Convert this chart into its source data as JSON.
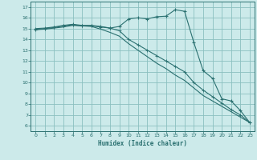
{
  "bg_color": "#cceaea",
  "grid_color": "#8bbfbf",
  "line_color": "#2a7070",
  "xlabel": "Humidex (Indice chaleur)",
  "xlim": [
    -0.5,
    23.5
  ],
  "ylim": [
    5.5,
    17.5
  ],
  "yticks": [
    6,
    7,
    8,
    9,
    10,
    11,
    12,
    13,
    14,
    15,
    16,
    17
  ],
  "xticks": [
    0,
    1,
    2,
    3,
    4,
    5,
    6,
    7,
    8,
    9,
    10,
    11,
    12,
    13,
    14,
    15,
    16,
    17,
    18,
    19,
    20,
    21,
    22,
    23
  ],
  "line1_x": [
    0,
    1,
    2,
    3,
    4,
    5,
    6,
    7,
    8,
    9,
    10,
    11,
    12,
    13,
    14,
    15,
    16,
    17,
    18,
    19,
    20,
    21,
    22,
    23
  ],
  "line1_y": [
    14.9,
    15.0,
    15.1,
    15.25,
    15.35,
    15.25,
    15.25,
    15.15,
    15.05,
    15.2,
    15.9,
    16.0,
    15.9,
    16.1,
    16.15,
    16.75,
    16.6,
    13.7,
    11.1,
    10.4,
    8.5,
    8.3,
    7.4,
    6.3
  ],
  "line2_x": [
    0,
    1,
    2,
    3,
    4,
    5,
    6,
    7,
    8,
    9,
    10,
    11,
    12,
    13,
    14,
    15,
    16,
    17,
    18,
    19,
    20,
    21,
    22,
    23
  ],
  "line2_y": [
    15.0,
    15.05,
    15.15,
    15.3,
    15.4,
    15.3,
    15.3,
    15.2,
    15.05,
    14.8,
    14.0,
    13.5,
    13.0,
    12.5,
    12.0,
    11.5,
    11.0,
    10.0,
    9.3,
    8.7,
    8.1,
    7.5,
    7.0,
    6.3
  ],
  "line3_x": [
    0,
    1,
    2,
    3,
    4,
    5,
    6,
    7,
    8,
    9,
    10,
    11,
    12,
    13,
    14,
    15,
    16,
    17,
    18,
    19,
    20,
    21,
    22,
    23
  ],
  "line3_y": [
    14.9,
    14.95,
    15.05,
    15.15,
    15.3,
    15.25,
    15.2,
    14.95,
    14.65,
    14.3,
    13.6,
    13.0,
    12.4,
    11.8,
    11.3,
    10.7,
    10.2,
    9.5,
    8.8,
    8.3,
    7.8,
    7.3,
    6.8,
    6.3
  ]
}
